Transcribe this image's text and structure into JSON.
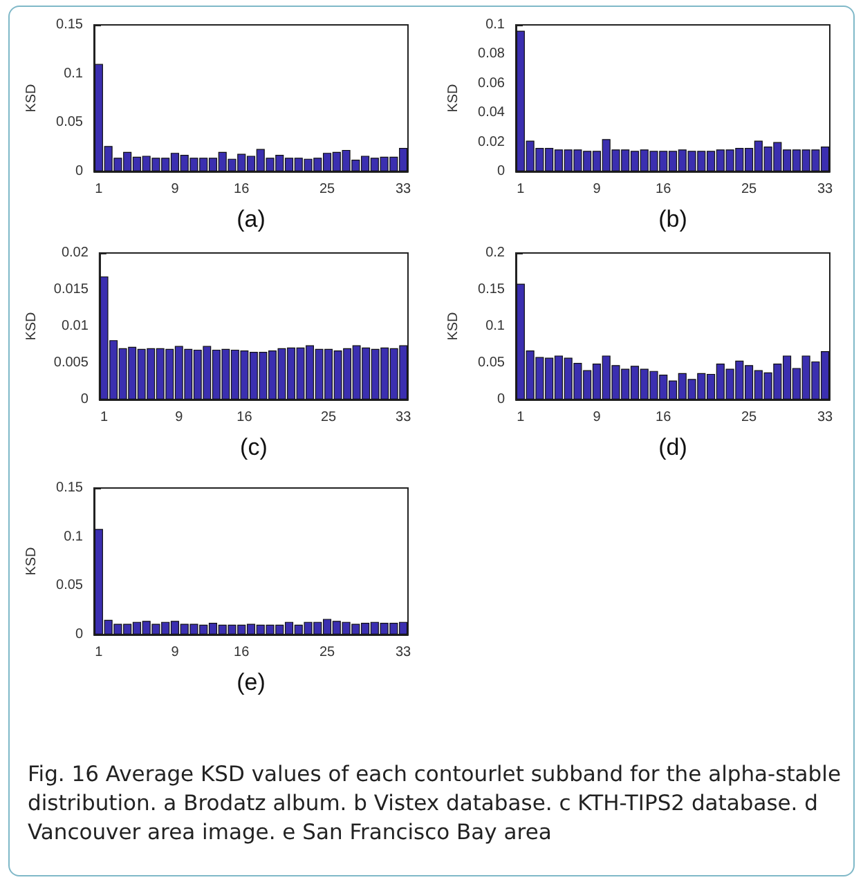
{
  "chart_data": [
    {
      "type": "bar",
      "xlabel": "(a)",
      "ylabel": "KSD",
      "color": "#3b2fb0",
      "ylim": [
        0,
        0.15
      ],
      "yticks": [
        0,
        0.05,
        0.1,
        0.15
      ],
      "grid": false,
      "categories": [
        "1",
        null,
        null,
        null,
        null,
        null,
        null,
        null,
        "9",
        null,
        null,
        null,
        null,
        null,
        null,
        "16",
        null,
        null,
        null,
        null,
        null,
        null,
        null,
        null,
        "25",
        null,
        null,
        null,
        null,
        null,
        null,
        null,
        "33"
      ],
      "values": [
        0.11,
        0.026,
        0.014,
        0.02,
        0.015,
        0.016,
        0.014,
        0.014,
        0.019,
        0.017,
        0.014,
        0.014,
        0.014,
        0.02,
        0.013,
        0.018,
        0.016,
        0.023,
        0.014,
        0.017,
        0.014,
        0.014,
        0.013,
        0.014,
        0.019,
        0.02,
        0.022,
        0.012,
        0.016,
        0.014,
        0.015,
        0.015,
        0.024
      ]
    },
    {
      "type": "bar",
      "xlabel": "(b)",
      "ylabel": "KSD",
      "color": "#3b2fb0",
      "ylim": [
        0,
        0.1
      ],
      "yticks": [
        0,
        0.02,
        0.04,
        0.06,
        0.08,
        0.1
      ],
      "grid": false,
      "categories": [
        "1",
        null,
        null,
        null,
        null,
        null,
        null,
        null,
        "9",
        null,
        null,
        null,
        null,
        null,
        null,
        "16",
        null,
        null,
        null,
        null,
        null,
        null,
        null,
        null,
        "25",
        null,
        null,
        null,
        null,
        null,
        null,
        null,
        "33"
      ],
      "values": [
        0.096,
        0.021,
        0.016,
        0.016,
        0.015,
        0.015,
        0.015,
        0.014,
        0.014,
        0.022,
        0.015,
        0.015,
        0.014,
        0.015,
        0.014,
        0.014,
        0.014,
        0.015,
        0.014,
        0.014,
        0.014,
        0.015,
        0.015,
        0.016,
        0.016,
        0.021,
        0.017,
        0.02,
        0.015,
        0.015,
        0.015,
        0.015,
        0.017
      ]
    },
    {
      "type": "bar",
      "xlabel": "(c)",
      "ylabel": "KSD",
      "color": "#3b2fb0",
      "ylim": [
        0,
        0.02
      ],
      "yticks": [
        0,
        0.005,
        0.01,
        0.015,
        0.02
      ],
      "grid": false,
      "categories": [
        "1",
        null,
        null,
        null,
        null,
        null,
        null,
        null,
        "9",
        null,
        null,
        null,
        null,
        null,
        null,
        "16",
        null,
        null,
        null,
        null,
        null,
        null,
        null,
        null,
        "25",
        null,
        null,
        null,
        null,
        null,
        null,
        null,
        "33"
      ],
      "values": [
        0.0168,
        0.0081,
        0.007,
        0.0072,
        0.0069,
        0.007,
        0.007,
        0.0069,
        0.0073,
        0.0069,
        0.0068,
        0.0073,
        0.0068,
        0.0069,
        0.0068,
        0.0067,
        0.0065,
        0.0065,
        0.0067,
        0.007,
        0.0071,
        0.0071,
        0.0074,
        0.0069,
        0.0069,
        0.0067,
        0.007,
        0.0074,
        0.0071,
        0.0069,
        0.0071,
        0.007,
        0.0074
      ]
    },
    {
      "type": "bar",
      "xlabel": "(d)",
      "ylabel": "KSD",
      "color": "#3b2fb0",
      "ylim": [
        0,
        0.2
      ],
      "yticks": [
        0,
        0.05,
        0.1,
        0.15,
        0.2
      ],
      "grid": false,
      "categories": [
        "1",
        null,
        null,
        null,
        null,
        null,
        null,
        null,
        "9",
        null,
        null,
        null,
        null,
        null,
        null,
        "16",
        null,
        null,
        null,
        null,
        null,
        null,
        null,
        null,
        "25",
        null,
        null,
        null,
        null,
        null,
        null,
        null,
        "33"
      ],
      "values": [
        0.158,
        0.067,
        0.058,
        0.057,
        0.06,
        0.057,
        0.05,
        0.04,
        0.049,
        0.06,
        0.047,
        0.042,
        0.046,
        0.042,
        0.039,
        0.034,
        0.026,
        0.036,
        0.028,
        0.036,
        0.035,
        0.049,
        0.042,
        0.053,
        0.047,
        0.04,
        0.037,
        0.049,
        0.06,
        0.043,
        0.06,
        0.052,
        0.066
      ]
    },
    {
      "type": "bar",
      "xlabel": "(e)",
      "ylabel": "KSD",
      "color": "#3b2fb0",
      "ylim": [
        0,
        0.15
      ],
      "yticks": [
        0,
        0.05,
        0.1,
        0.15
      ],
      "grid": false,
      "categories": [
        "1",
        null,
        null,
        null,
        null,
        null,
        null,
        null,
        "9",
        null,
        null,
        null,
        null,
        null,
        null,
        "16",
        null,
        null,
        null,
        null,
        null,
        null,
        null,
        null,
        "25",
        null,
        null,
        null,
        null,
        null,
        null,
        null,
        "33"
      ],
      "values": [
        0.108,
        0.015,
        0.011,
        0.011,
        0.013,
        0.014,
        0.011,
        0.013,
        0.014,
        0.011,
        0.011,
        0.01,
        0.012,
        0.01,
        0.01,
        0.01,
        0.011,
        0.01,
        0.01,
        0.01,
        0.013,
        0.01,
        0.013,
        0.013,
        0.016,
        0.014,
        0.013,
        0.011,
        0.012,
        0.013,
        0.012,
        0.012,
        0.013
      ],
      "annotations": [
        "Fig. 16 Average KSD values of each contourlet subband for the alpha-stable distribution. a Brodatz album. b Vistex database. c KTH-TIPS2 database. d Vancouver area image. e San Francisco Bay area"
      ]
    }
  ]
}
